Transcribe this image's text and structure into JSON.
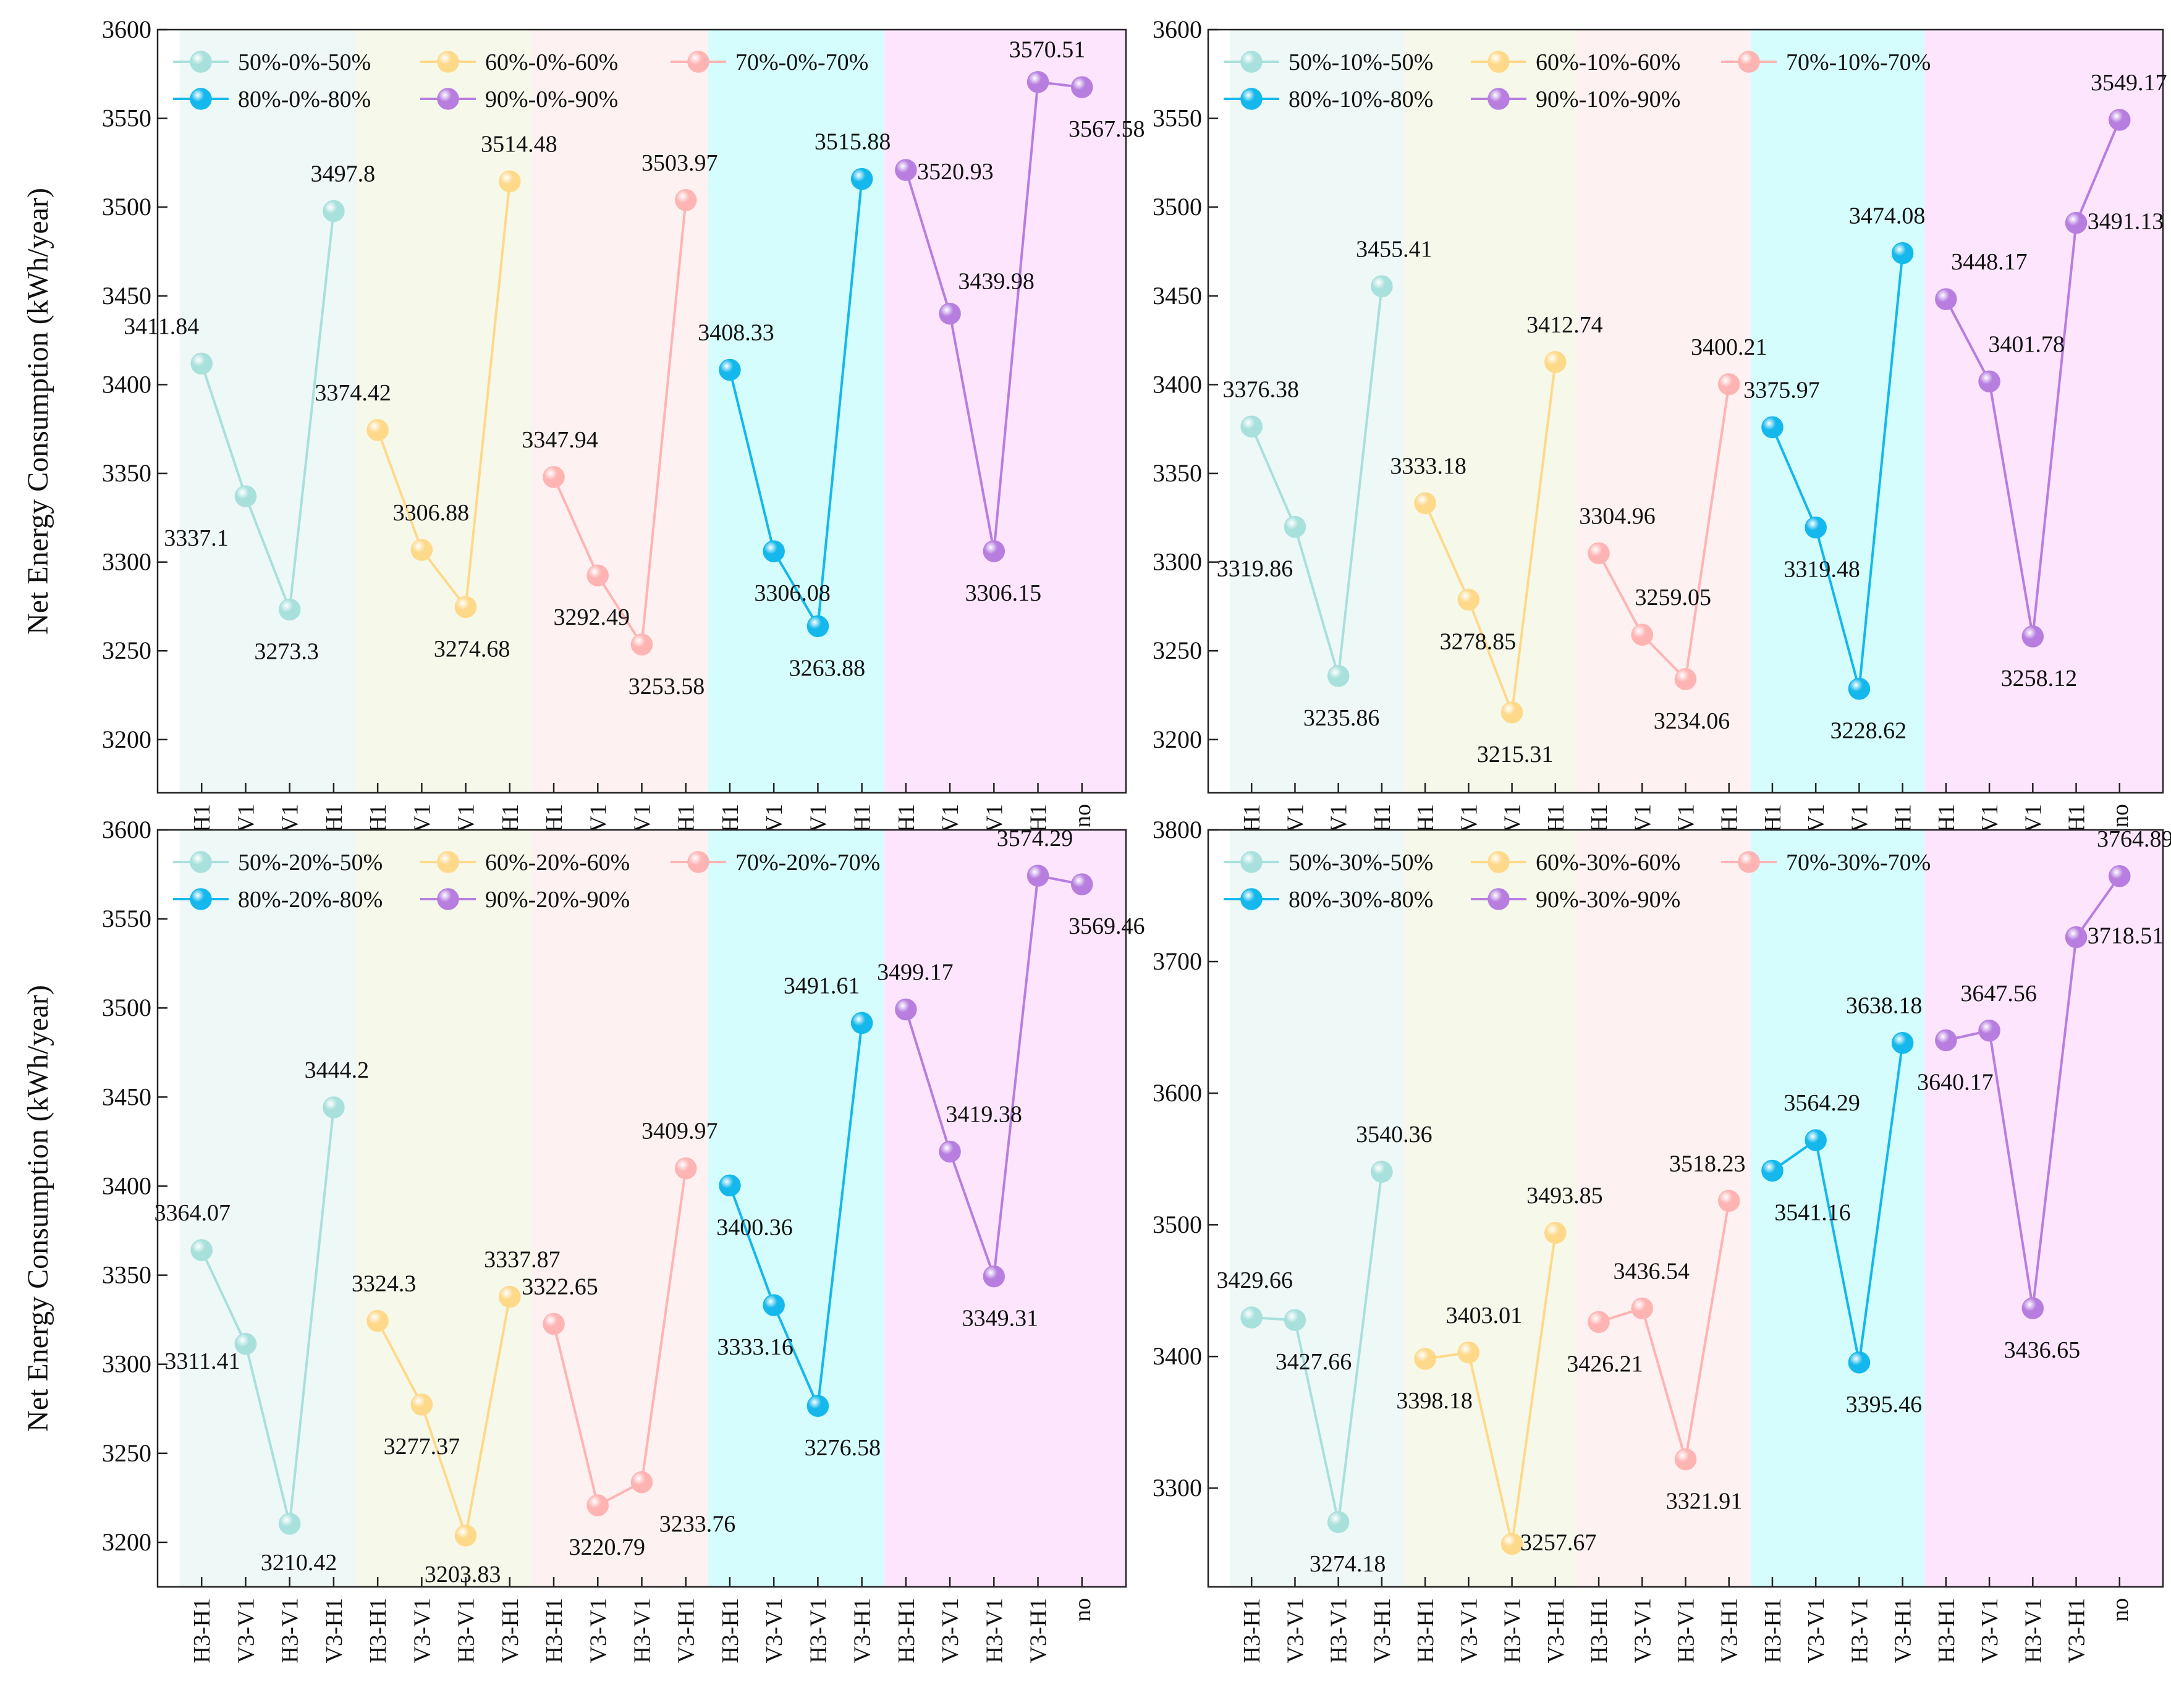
{
  "x_categories": [
    "H3-H1",
    "V3-V1",
    "H3-V1",
    "V3-H1",
    "H3-H1",
    "V3-V1",
    "H3-V1",
    "V3-H1",
    "H3-H1",
    "V3-V1",
    "H3-V1",
    "V3-H1",
    "H3-H1",
    "V3-V1",
    "H3-V1",
    "V3-H1",
    "H3-H1",
    "V3-V1",
    "H3-V1",
    "V3-H1",
    "no"
  ],
  "colors": {
    "bands": [
      "#eef8f6",
      "#f6f8ea",
      "#fdf1f1",
      "#d6fdfd",
      "#fde6fd"
    ],
    "series": [
      "#a8e0dc",
      "#ffd98a",
      "#ffb4b4",
      "#14b8ec",
      "#b77ee0"
    ],
    "axis": "#222222"
  },
  "chart_data": [
    {
      "type": "line",
      "ylabel": "Net Energy Consumption (kWh/year)",
      "ylim": [
        3170,
        3600
      ],
      "yticks": [
        3200,
        3250,
        3300,
        3350,
        3400,
        3450,
        3500,
        3550,
        3600
      ],
      "legend_position": "top-left",
      "series": [
        {
          "name": "50%-0%-50%",
          "x_index": [
            1,
            2,
            3,
            4
          ],
          "values": [
            3411.84,
            3337.1,
            3273.3,
            3497.8
          ],
          "labels": [
            "3411.84",
            "3337.1",
            "3273.3",
            "3497.8"
          ]
        },
        {
          "name": "60%-0%-60%",
          "x_index": [
            5,
            6,
            7,
            8
          ],
          "values": [
            3374.42,
            3306.88,
            3274.68,
            3514.48
          ],
          "labels": [
            "3374.42",
            "3306.88",
            "3274.68",
            "3514.48"
          ]
        },
        {
          "name": "70%-0%-70%",
          "x_index": [
            9,
            10,
            11,
            12
          ],
          "values": [
            3347.94,
            3292.49,
            3253.58,
            3503.97
          ],
          "labels": [
            "3347.94",
            "3292.49",
            "3253.58",
            "3503.97"
          ]
        },
        {
          "name": "80%-0%-80%",
          "x_index": [
            13,
            14,
            15,
            16
          ],
          "values": [
            3408.33,
            3306.08,
            3263.88,
            3515.88
          ],
          "labels": [
            "3408.33",
            "3306.08",
            "3263.88",
            "3515.88"
          ]
        },
        {
          "name": "90%-0%-90%",
          "x_index": [
            17,
            18,
            19,
            20,
            21
          ],
          "values": [
            3520.93,
            3439.98,
            3306.15,
            3570.51,
            3567.58
          ],
          "labels": [
            "3520.93",
            "3439.98",
            "3306.15",
            "3570.51",
            "3567.58"
          ]
        }
      ]
    },
    {
      "type": "line",
      "ylabel": "",
      "ylim": [
        3170,
        3600
      ],
      "yticks": [
        3200,
        3250,
        3300,
        3350,
        3400,
        3450,
        3500,
        3550,
        3600
      ],
      "legend_position": "top-left",
      "series": [
        {
          "name": "50%-10%-50%",
          "x_index": [
            1,
            2,
            3,
            4
          ],
          "values": [
            3376.38,
            3319.86,
            3235.86,
            3455.41
          ],
          "labels": [
            "3376.38",
            "3319.86",
            "3235.86",
            "3455.41"
          ]
        },
        {
          "name": "60%-10%-60%",
          "x_index": [
            5,
            6,
            7,
            8
          ],
          "values": [
            3333.18,
            3278.85,
            3215.31,
            3412.74
          ],
          "labels": [
            "3333.18",
            "3278.85",
            "3215.31",
            "3412.74"
          ]
        },
        {
          "name": "70%-10%-70%",
          "x_index": [
            9,
            10,
            11,
            12
          ],
          "values": [
            3304.96,
            3259.05,
            3234.06,
            3400.21
          ],
          "labels": [
            "3304.96",
            "3259.05",
            "3234.06",
            "3400.21"
          ]
        },
        {
          "name": "80%-10%-80%",
          "x_index": [
            13,
            14,
            15,
            16
          ],
          "values": [
            3375.97,
            3319.48,
            3228.62,
            3474.08
          ],
          "labels": [
            "3375.97",
            "3319.48",
            "3228.62",
            "3474.08"
          ]
        },
        {
          "name": "90%-10%-90%",
          "x_index": [
            17,
            18,
            19,
            20,
            21
          ],
          "values": [
            3448.17,
            3401.78,
            3258.12,
            3491.13,
            3549.17
          ],
          "labels": [
            "3448.17",
            "3401.78",
            "3258.12",
            "3491.13",
            "3549.17"
          ]
        }
      ]
    },
    {
      "type": "line",
      "ylabel": "Net Energy Consumption (kWh/year)",
      "ylim": [
        3175,
        3600
      ],
      "yticks": [
        3200,
        3250,
        3300,
        3350,
        3400,
        3450,
        3500,
        3550,
        3600
      ],
      "legend_position": "top-left",
      "series": [
        {
          "name": "50%-20%-50%",
          "x_index": [
            1,
            2,
            3,
            4
          ],
          "values": [
            3364.07,
            3311.41,
            3210.42,
            3444.2
          ],
          "labels": [
            "3364.07",
            "3311.41",
            "3210.42",
            "3444.2"
          ]
        },
        {
          "name": "60%-20%-60%",
          "x_index": [
            5,
            6,
            7,
            8
          ],
          "values": [
            3324.3,
            3277.37,
            3203.83,
            3337.87
          ],
          "labels": [
            "3324.3",
            "3277.37",
            "3203.83",
            "3337.87"
          ]
        },
        {
          "name": "70%-20%-70%",
          "x_index": [
            9,
            10,
            11,
            12
          ],
          "values": [
            3322.65,
            3220.79,
            3233.76,
            3409.97
          ],
          "labels": [
            "3322.65",
            "3220.79",
            "3233.76",
            "3409.97"
          ]
        },
        {
          "name": "80%-20%-80%",
          "x_index": [
            13,
            14,
            15,
            16
          ],
          "values": [
            3400.36,
            3333.16,
            3276.58,
            3491.61
          ],
          "labels": [
            "3400.36",
            "3333.16",
            "3276.58",
            "3491.61"
          ]
        },
        {
          "name": "90%-20%-90%",
          "x_index": [
            17,
            18,
            19,
            20,
            21
          ],
          "values": [
            3499.17,
            3419.38,
            3349.31,
            3574.29,
            3569.46
          ],
          "labels": [
            "3499.17",
            "3419.38",
            "3349.31",
            "3574.29",
            "3569.46"
          ]
        }
      ]
    },
    {
      "type": "line",
      "ylabel": "",
      "ylim": [
        3225,
        3800
      ],
      "yticks": [
        3300,
        3400,
        3500,
        3600,
        3700,
        3800
      ],
      "legend_position": "top-left",
      "series": [
        {
          "name": "50%-30%-50%",
          "x_index": [
            1,
            2,
            3,
            4
          ],
          "values": [
            3429.66,
            3427.66,
            3274.18,
            3540.36
          ],
          "labels": [
            "3429.66",
            "3427.66",
            "3274.18",
            "3540.36"
          ]
        },
        {
          "name": "60%-30%-60%",
          "x_index": [
            5,
            6,
            7,
            8
          ],
          "values": [
            3398.18,
            3403.01,
            3257.67,
            3493.85
          ],
          "labels": [
            "3398.18",
            "3403.01",
            "3257.67",
            "3493.85"
          ]
        },
        {
          "name": "70%-30%-70%",
          "x_index": [
            9,
            10,
            11,
            12
          ],
          "values": [
            3426.21,
            3436.54,
            3321.91,
            3518.23
          ],
          "labels": [
            "3426.21",
            "3436.54",
            "3321.91",
            "3518.23"
          ]
        },
        {
          "name": "80%-30%-80%",
          "x_index": [
            13,
            14,
            15,
            16
          ],
          "values": [
            3541.16,
            3564.29,
            3395.46,
            3638.18
          ],
          "labels": [
            "3541.16",
            "3564.29",
            "3395.46",
            "3638.18"
          ]
        },
        {
          "name": "90%-30%-90%",
          "x_index": [
            17,
            18,
            19,
            20,
            21
          ],
          "values": [
            3640.17,
            3647.56,
            3436.65,
            3718.51,
            3764.89
          ],
          "labels": [
            "3640.17",
            "3647.56",
            "3436.65",
            "3718.51",
            "3764.89"
          ]
        }
      ]
    }
  ]
}
